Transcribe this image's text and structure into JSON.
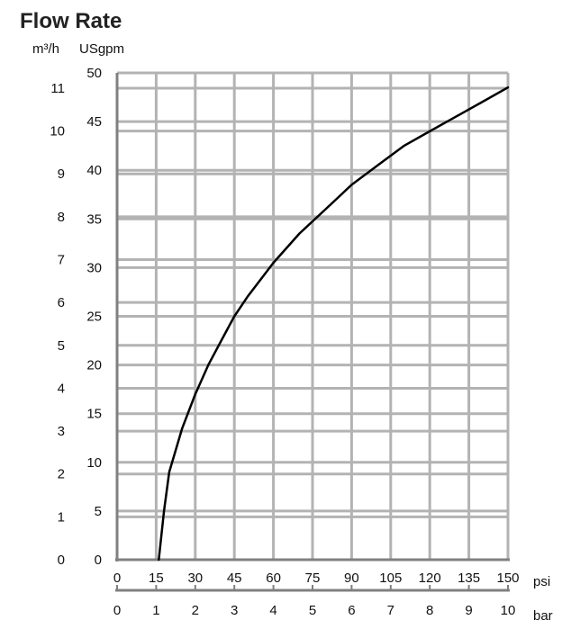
{
  "chart_data": {
    "type": "line",
    "title": "Flow Rate",
    "y_left_outer_unit": "m³/h",
    "y_left_inner_unit": "USgpm",
    "x_top_unit": "psi",
    "x_bottom_unit": "bar",
    "y_outer_ticks": [
      "11",
      "10",
      "9",
      "8",
      "7",
      "6",
      "5",
      "4",
      "3",
      "2",
      "1",
      "0"
    ],
    "y_outer_values": [
      11,
      10,
      9,
      8,
      7,
      6,
      5,
      4,
      3,
      2,
      1,
      0
    ],
    "y_inner_ticks": [
      "50",
      "45",
      "40",
      "35",
      "30",
      "25",
      "20",
      "15",
      "10",
      "5",
      "0"
    ],
    "y_inner_values": [
      50,
      45,
      40,
      35,
      30,
      25,
      20,
      15,
      10,
      5,
      0
    ],
    "x_psi_ticks": [
      "0",
      "15",
      "30",
      "45",
      "60",
      "75",
      "90",
      "105",
      "120",
      "135",
      "150"
    ],
    "x_psi_values": [
      0,
      15,
      30,
      45,
      60,
      75,
      90,
      105,
      120,
      135,
      150
    ],
    "x_bar_ticks": [
      "0",
      "1",
      "2",
      "3",
      "4",
      "5",
      "6",
      "7",
      "8",
      "9",
      "10"
    ],
    "x_bar_values": [
      0,
      1,
      2,
      3,
      4,
      5,
      6,
      7,
      8,
      9,
      10
    ],
    "xlim_psi": [
      0,
      150
    ],
    "ylim_usgpm": [
      0,
      50
    ],
    "grid": true,
    "series": [
      {
        "x": [
          16,
          18,
          20,
          25,
          30,
          35,
          40,
          45,
          50,
          60,
          70,
          80,
          90,
          100,
          110,
          120,
          130,
          140,
          150
        ],
        "values": [
          0,
          5,
          9,
          13.5,
          17,
          20,
          22.5,
          25,
          27,
          30.5,
          33.5,
          36,
          38.5,
          40.5,
          42.5,
          44,
          45.5,
          47,
          48.5
        ]
      }
    ],
    "colors": {
      "grid": "#b3b3b3",
      "axis": "#808080",
      "curve": "#000000",
      "text": "#111111"
    }
  }
}
